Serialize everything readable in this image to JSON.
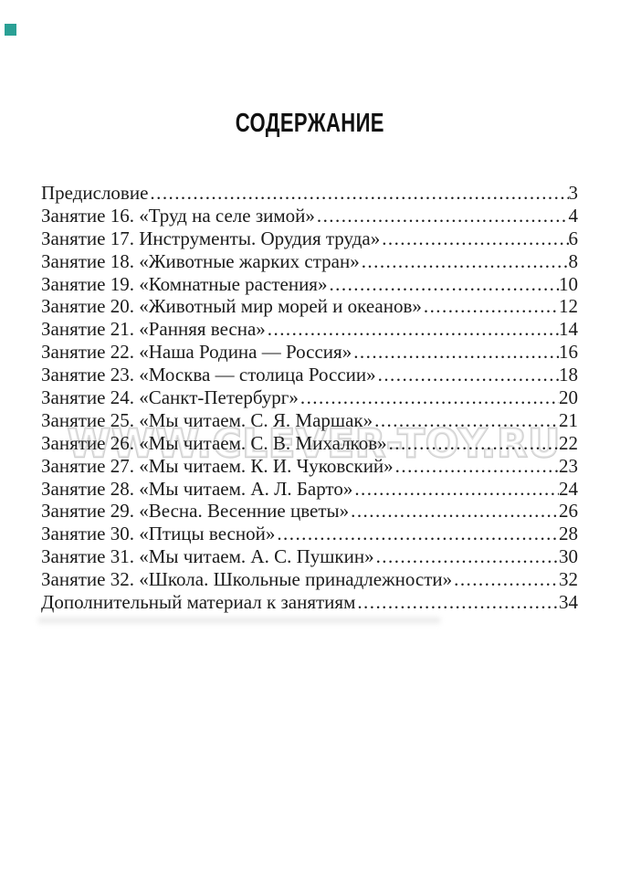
{
  "page": {
    "heading": "СОДЕРЖАНИЕ",
    "watermark_text": "WWW.CLEVER-TOY.RU",
    "corner_mark_color": "#2aa095",
    "text_color": "#1b1b1b"
  },
  "toc": {
    "entries": [
      {
        "title": "Предисловие",
        "page": "3"
      },
      {
        "title": "Занятие 16. «Труд на селе зимой»",
        "page": "4"
      },
      {
        "title": "Занятие 17. Инструменты. Орудия труда»",
        "page": "6"
      },
      {
        "title": "Занятие 18. «Животные жарких стран»",
        "page": "8"
      },
      {
        "title": "Занятие 19. «Комнатные растения»",
        "page": "10"
      },
      {
        "title": "Занятие 20. «Животный мир морей и океанов»",
        "page": "12"
      },
      {
        "title": "Занятие 21. «Ранняя весна»",
        "page": "14"
      },
      {
        "title": "Занятие 22. «Наша Родина — Россия»",
        "page": "16"
      },
      {
        "title": "Занятие 23. «Москва — столица России»",
        "page": "18"
      },
      {
        "title": "Занятие 24. «Санкт-Петербург»",
        "page": "20"
      },
      {
        "title": "Занятие 25. «Мы читаем. С. Я. Маршак»",
        "page": "21"
      },
      {
        "title": "Занятие 26. «Мы читаем. С. В. Михалков»",
        "page": "22"
      },
      {
        "title": "Занятие 27. «Мы читаем. К. И. Чуковский»",
        "page": "23"
      },
      {
        "title": "Занятие 28. «Мы читаем. А. Л. Барто»",
        "page": "24"
      },
      {
        "title": "Занятие 29. «Весна. Весенние цветы»",
        "page": "26"
      },
      {
        "title": "Занятие 30. «Птицы весной»",
        "page": "28"
      },
      {
        "title": "Занятие 31. «Мы читаем. А. С. Пушкин»",
        "page": "30"
      },
      {
        "title": "Занятие 32. «Школа. Школьные принадлежности»",
        "page": "32"
      },
      {
        "title": "Дополнительный материал к занятиям",
        "page": "34"
      }
    ]
  }
}
